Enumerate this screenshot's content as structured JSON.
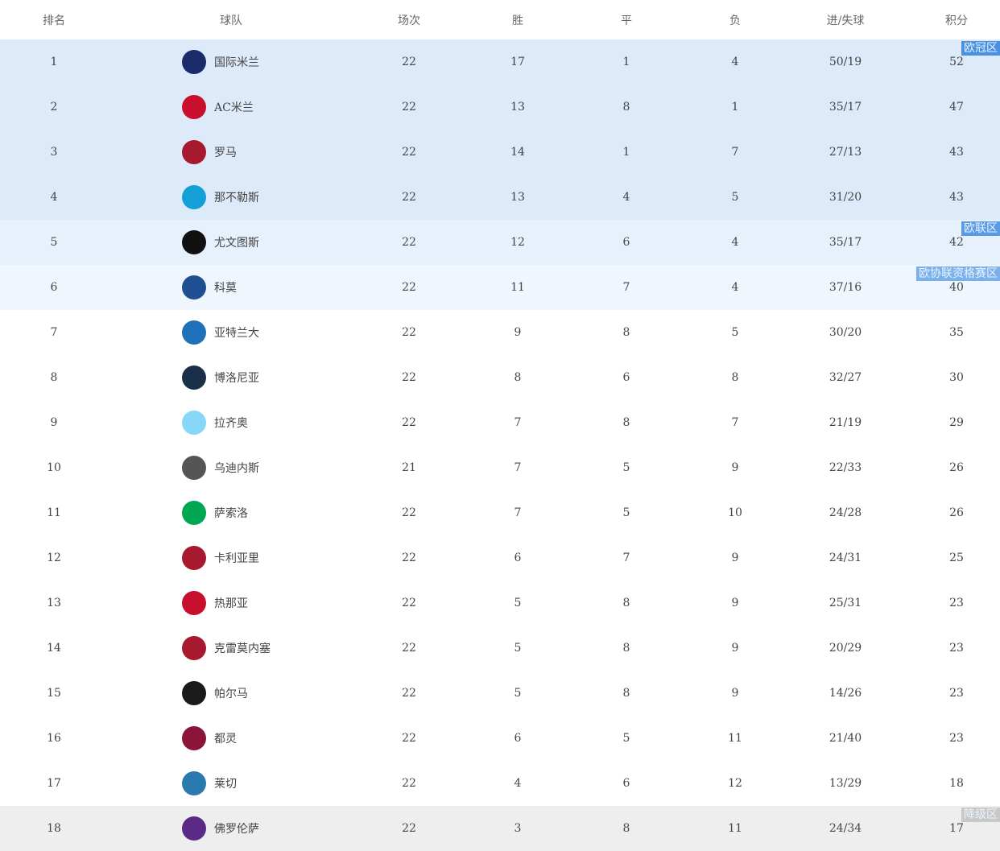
{
  "headers": [
    "排名",
    "球队",
    "场次",
    "胜",
    "平",
    "负",
    "进/失球",
    "积分"
  ],
  "zones": {
    "ucl": "欧冠区",
    "uel": "欧联区",
    "uecl": "欧协联资格赛区",
    "rel": "降级区"
  },
  "colors": {
    "ucl": "#dceafa",
    "uel": "#e7f1fc",
    "uecl": "#f0f6fd",
    "rel": "#eeeeee",
    "ucl_tag": "#4a90e2",
    "uel_tag": "#5a9be6",
    "uecl_tag": "#7ab0ec",
    "rel_tag": "#c8c8c8"
  },
  "rows": [
    {
      "rank": "1",
      "team": "国际米兰",
      "played": "22",
      "w": "17",
      "d": "1",
      "l": "4",
      "goals": "50/19",
      "pts": "52",
      "badge": "#1b2a6b",
      "zone": "ucl"
    },
    {
      "rank": "2",
      "team": "AC米兰",
      "played": "22",
      "w": "13",
      "d": "8",
      "l": "1",
      "goals": "35/17",
      "pts": "47",
      "badge": "#c8102e",
      "zone": "ucl"
    },
    {
      "rank": "3",
      "team": "罗马",
      "played": "22",
      "w": "14",
      "d": "1",
      "l": "7",
      "goals": "27/13",
      "pts": "43",
      "badge": "#a6192e",
      "zone": "ucl"
    },
    {
      "rank": "4",
      "team": "那不勒斯",
      "played": "22",
      "w": "13",
      "d": "4",
      "l": "5",
      "goals": "31/20",
      "pts": "43",
      "badge": "#12a0d7",
      "zone": "ucl"
    },
    {
      "rank": "5",
      "team": "尤文图斯",
      "played": "22",
      "w": "12",
      "d": "6",
      "l": "4",
      "goals": "35/17",
      "pts": "42",
      "badge": "#111111",
      "zone": "uel"
    },
    {
      "rank": "6",
      "team": "科莫",
      "played": "22",
      "w": "11",
      "d": "7",
      "l": "4",
      "goals": "37/16",
      "pts": "40",
      "badge": "#1d4f91",
      "zone": "uecl"
    },
    {
      "rank": "7",
      "team": "亚特兰大",
      "played": "22",
      "w": "9",
      "d": "8",
      "l": "5",
      "goals": "30/20",
      "pts": "35",
      "badge": "#1e71b8",
      "zone": ""
    },
    {
      "rank": "8",
      "team": "博洛尼亚",
      "played": "22",
      "w": "8",
      "d": "6",
      "l": "8",
      "goals": "32/27",
      "pts": "30",
      "badge": "#1a2f48",
      "zone": ""
    },
    {
      "rank": "9",
      "team": "拉齐奥",
      "played": "22",
      "w": "7",
      "d": "8",
      "l": "7",
      "goals": "21/19",
      "pts": "29",
      "badge": "#87d8f7",
      "zone": ""
    },
    {
      "rank": "10",
      "team": "乌迪内斯",
      "played": "21",
      "w": "7",
      "d": "5",
      "l": "9",
      "goals": "22/33",
      "pts": "26",
      "badge": "#555555",
      "zone": ""
    },
    {
      "rank": "11",
      "team": "萨索洛",
      "played": "22",
      "w": "7",
      "d": "5",
      "l": "10",
      "goals": "24/28",
      "pts": "26",
      "badge": "#00a752",
      "zone": ""
    },
    {
      "rank": "12",
      "team": "卡利亚里",
      "played": "22",
      "w": "6",
      "d": "7",
      "l": "9",
      "goals": "24/31",
      "pts": "25",
      "badge": "#a6192e",
      "zone": ""
    },
    {
      "rank": "13",
      "team": "热那亚",
      "played": "22",
      "w": "5",
      "d": "8",
      "l": "9",
      "goals": "25/31",
      "pts": "23",
      "badge": "#c8102e",
      "zone": ""
    },
    {
      "rank": "14",
      "team": "克雷莫内塞",
      "played": "22",
      "w": "5",
      "d": "8",
      "l": "9",
      "goals": "20/29",
      "pts": "23",
      "badge": "#a6192e",
      "zone": ""
    },
    {
      "rank": "15",
      "team": "帕尔马",
      "played": "22",
      "w": "5",
      "d": "8",
      "l": "9",
      "goals": "14/26",
      "pts": "23",
      "badge": "#1a1a1a",
      "zone": ""
    },
    {
      "rank": "16",
      "team": "都灵",
      "played": "22",
      "w": "6",
      "d": "5",
      "l": "11",
      "goals": "21/40",
      "pts": "23",
      "badge": "#8a1538",
      "zone": ""
    },
    {
      "rank": "17",
      "team": "莱切",
      "played": "22",
      "w": "4",
      "d": "6",
      "l": "12",
      "goals": "13/29",
      "pts": "18",
      "badge": "#2a7ab0",
      "zone": ""
    },
    {
      "rank": "18",
      "team": "佛罗伦萨",
      "played": "22",
      "w": "3",
      "d": "8",
      "l": "11",
      "goals": "24/34",
      "pts": "17",
      "badge": "#5b2a86",
      "zone": "rel"
    }
  ]
}
